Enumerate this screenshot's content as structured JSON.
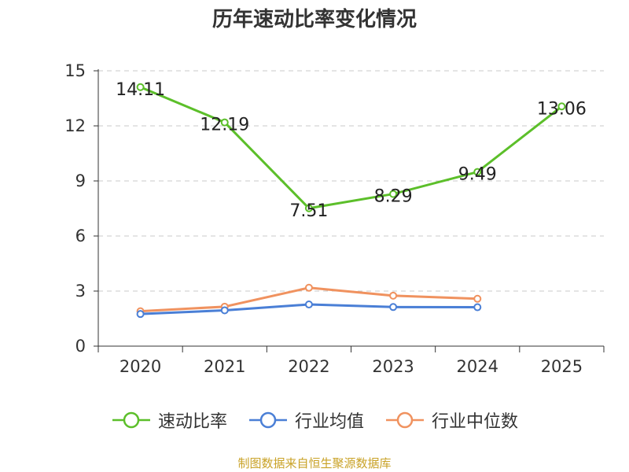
{
  "chart_data": {
    "type": "line",
    "title": "历年速动比率变化情况",
    "categories": [
      "2020",
      "2021",
      "2022",
      "2023",
      "2024",
      "2025"
    ],
    "yticks": [
      "0",
      "3",
      "6",
      "9",
      "12",
      "15"
    ],
    "ylim": [
      0,
      15
    ],
    "grid": true,
    "legend_position": "bottom",
    "series": [
      {
        "name": "速动比率",
        "color": "#5cbf2a",
        "values": [
          14.11,
          12.19,
          7.51,
          8.29,
          9.49,
          13.06
        ],
        "labels": [
          "14.11",
          "12.19",
          "7.51",
          "8.29",
          "9.49",
          "13.06"
        ]
      },
      {
        "name": "行业均值",
        "color": "#4a7fd6",
        "values": [
          1.75,
          1.95,
          2.27,
          2.13,
          2.12,
          null
        ]
      },
      {
        "name": "行业中位数",
        "color": "#f0925f",
        "values": [
          1.9,
          2.15,
          3.18,
          2.75,
          2.58,
          null
        ]
      }
    ]
  },
  "footer": "制图数据来自恒生聚源数据库"
}
